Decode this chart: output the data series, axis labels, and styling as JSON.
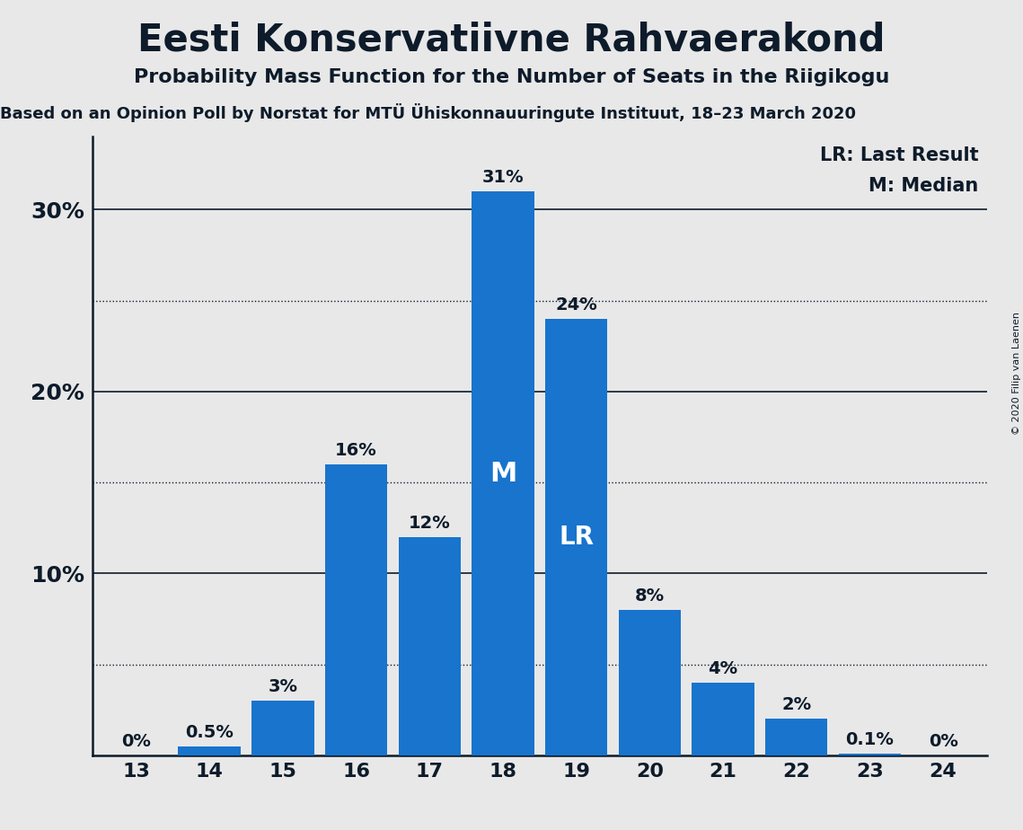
{
  "title": "Eesti Konservatiivne Rahvaerakond",
  "subtitle": "Probability Mass Function for the Number of Seats in the Riigikogu",
  "sub_subtitle": "Based on an Opinion Poll by Norstat for MTÜ Ühiskonnauuringute Instituut, 18–23 March 2020",
  "copyright": "© 2020 Filip van Laenen",
  "seats": [
    13,
    14,
    15,
    16,
    17,
    18,
    19,
    20,
    21,
    22,
    23,
    24
  ],
  "probabilities": [
    0.0,
    0.5,
    3.0,
    16.0,
    12.0,
    31.0,
    24.0,
    8.0,
    4.0,
    2.0,
    0.1,
    0.0
  ],
  "bar_color": "#1874CD",
  "background_color": "#e8e8e8",
  "text_color": "#0d1b2a",
  "median_seat": 18,
  "last_result_seat": 19,
  "ylim": [
    0,
    34
  ],
  "yticks": [
    10,
    20,
    30
  ],
  "dotted_lines": [
    5,
    15,
    25
  ],
  "legend_lr": "LR: Last Result",
  "legend_m": "M: Median"
}
